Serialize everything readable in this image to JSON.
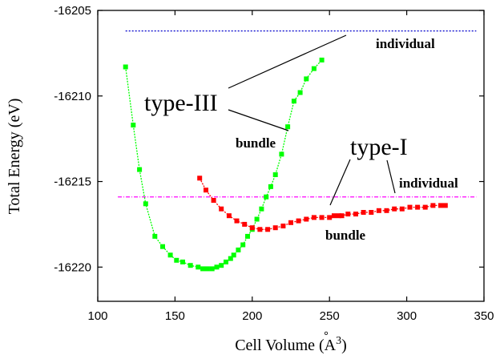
{
  "chart_data": {
    "type": "line",
    "title": "",
    "xlabel": "Cell Volume (Å^3)",
    "xlabel_parts": {
      "text": "Cell Volume (",
      "a": "A",
      "ring": "°",
      "sup": "3",
      "close": ")"
    },
    "ylabel": "Total Energy (eV)",
    "xlim": [
      100,
      350
    ],
    "ylim": [
      -16222,
      -16205
    ],
    "x_ticks": [
      "100",
      "150",
      "200",
      "250",
      "300",
      "350"
    ],
    "y_ticks": [
      "-16205",
      "-16210",
      "-16215",
      "-16220"
    ],
    "grid": false,
    "series": [
      {
        "name": "",
        "color": "#00ff00",
        "marker": "square",
        "x": [
          118,
          123,
          127,
          131,
          137,
          142,
          147,
          151,
          155,
          160,
          165,
          168,
          171,
          174,
          177,
          180,
          183,
          186,
          188,
          191,
          194,
          197,
          200,
          203,
          206,
          209,
          212,
          215,
          219,
          223,
          227,
          231,
          235,
          240,
          245
        ],
        "y": [
          -16208.3,
          -16211.7,
          -16214.3,
          -16216.3,
          -16218.2,
          -16218.8,
          -16219.3,
          -16219.6,
          -16219.7,
          -16219.9,
          -16220.0,
          -16220.1,
          -16220.1,
          -16220.1,
          -16220.0,
          -16219.9,
          -16219.7,
          -16219.5,
          -16219.3,
          -16219.0,
          -16218.7,
          -16218.2,
          -16217.8,
          -16217.2,
          -16216.6,
          -16215.9,
          -16215.3,
          -16214.6,
          -16213.4,
          -16211.8,
          -16210.3,
          -16209.8,
          -16209.0,
          -16208.4,
          -16207.9
        ]
      },
      {
        "name": "",
        "color": "#ff0000",
        "marker": "square",
        "x": [
          166,
          170,
          175,
          180,
          185,
          190,
          195,
          200,
          205,
          210,
          215,
          220,
          225,
          230,
          235,
          240,
          245,
          250,
          253,
          256,
          258,
          262,
          267,
          272,
          277,
          282,
          287,
          292,
          297,
          302,
          307,
          312,
          317,
          322,
          325
        ],
        "y": [
          -16214.8,
          -16215.5,
          -16216.1,
          -16216.6,
          -16217.0,
          -16217.3,
          -16217.5,
          -16217.7,
          -16217.8,
          -16217.8,
          -16217.7,
          -16217.6,
          -16217.4,
          -16217.3,
          -16217.2,
          -16217.1,
          -16217.1,
          -16217.1,
          -16217.0,
          -16217.0,
          -16217.0,
          -16216.9,
          -16216.9,
          -16216.8,
          -16216.8,
          -16216.7,
          -16216.7,
          -16216.6,
          -16216.6,
          -16216.5,
          -16216.5,
          -16216.5,
          -16216.4,
          -16216.4,
          -16216.4
        ]
      }
    ],
    "reference_lines": [
      {
        "y": -16206.2,
        "color": "#0000cc",
        "style": "dotted",
        "x_range": [
          118,
          345
        ]
      },
      {
        "y": -16215.9,
        "color": "#ff00ff",
        "style": "dash-dot",
        "x_range": [
          113,
          345
        ]
      }
    ],
    "annotations": {
      "type3": "type-III",
      "type3_bundle": "bundle",
      "type3_individual": "individual",
      "type1": "type-I",
      "type1_individual": "individual",
      "type1_bundle": "bundle"
    }
  }
}
